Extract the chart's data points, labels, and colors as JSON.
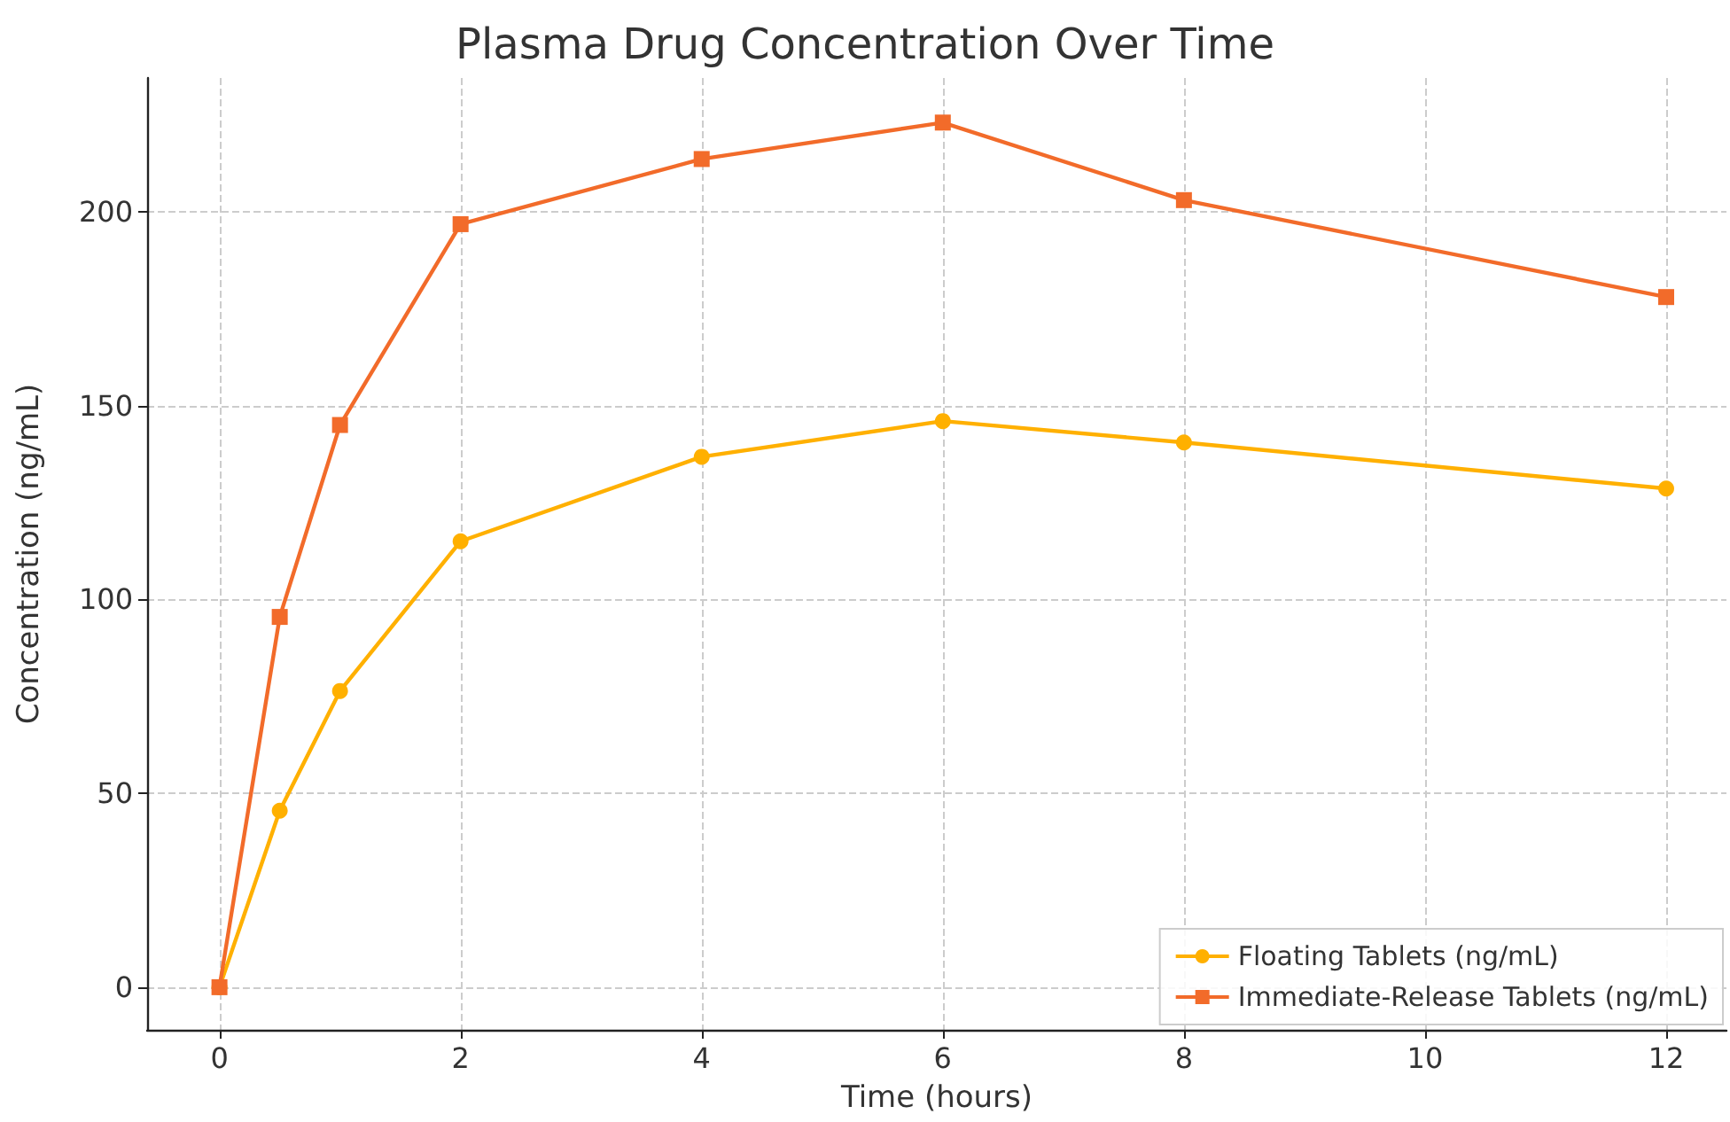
{
  "chart_data": {
    "type": "line",
    "title": "Plasma Drug Concentration Over Time",
    "xlabel": "Time (hours)",
    "ylabel": "Concentration (ng/mL)",
    "x": [
      0,
      0.5,
      1,
      2,
      4,
      6,
      8,
      12
    ],
    "series": [
      {
        "name": "Floating Tablets (ng/mL)",
        "color": "#ffb000",
        "marker": "circle",
        "values": [
          0,
          45.5,
          76.4,
          115,
          136.8,
          146,
          140.5,
          128.6
        ]
      },
      {
        "name": "Immediate-Release Tablets (ng/mL)",
        "color": "#f26b2a",
        "marker": "square",
        "values": [
          0,
          95.5,
          145,
          196.8,
          213.6,
          223,
          203,
          178
        ]
      }
    ],
    "xlim": [
      -0.6,
      12.5
    ],
    "xticks": [
      0,
      2,
      4,
      6,
      8,
      10,
      12
    ],
    "ylim": [
      -11,
      234.5
    ],
    "yticks": [
      0,
      50,
      100,
      150,
      200
    ],
    "grid": true,
    "legend": "bottom right",
    "line_style": "solid"
  }
}
